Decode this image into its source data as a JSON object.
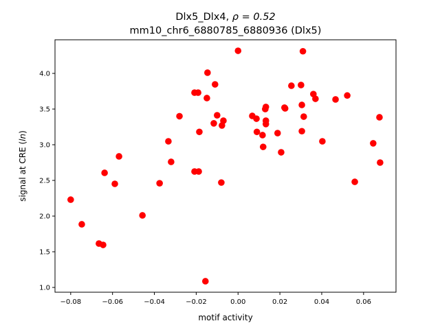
{
  "chart_data": {
    "type": "scatter",
    "title_line1_prefix": "Dlx5_Dlx4, ",
    "title_rho": "ρ = 0.52",
    "title_line2": "mm10_chr6_6880785_6880936 (Dlx5)",
    "xlabel": "motif activity",
    "ylabel_prefix": "signal at CRE (",
    "ylabel_italic": "ln",
    "ylabel_suffix": ")",
    "xlim": [
      -0.0875,
      0.0755
    ],
    "ylim": [
      0.933,
      4.471
    ],
    "xticks": [
      -0.08,
      -0.06,
      -0.04,
      -0.02,
      0.0,
      0.02,
      0.04,
      0.06
    ],
    "xtick_labels": [
      "−0.08",
      "−0.06",
      "−0.04",
      "−0.02",
      "0.00",
      "0.02",
      "0.04",
      "0.06"
    ],
    "yticks": [
      1.0,
      1.5,
      2.0,
      2.5,
      3.0,
      3.5,
      4.0
    ],
    "ytick_labels": [
      "1.0",
      "1.5",
      "2.0",
      "2.5",
      "3.0",
      "3.5",
      "4.0"
    ],
    "grid": false,
    "marker_color": "#ff0000",
    "points": [
      [
        -0.08,
        2.23
      ],
      [
        -0.0747,
        1.885
      ],
      [
        -0.0665,
        1.615
      ],
      [
        -0.0645,
        1.596
      ],
      [
        -0.0638,
        2.606
      ],
      [
        -0.0589,
        2.452
      ],
      [
        -0.0569,
        2.837
      ],
      [
        -0.0457,
        2.01
      ],
      [
        -0.0375,
        2.46
      ],
      [
        -0.0333,
        3.048
      ],
      [
        -0.032,
        2.76
      ],
      [
        -0.028,
        3.4
      ],
      [
        -0.0208,
        3.73
      ],
      [
        -0.0191,
        3.73
      ],
      [
        -0.0208,
        2.625
      ],
      [
        -0.0188,
        2.625
      ],
      [
        -0.0185,
        3.18
      ],
      [
        -0.0156,
        1.087
      ],
      [
        -0.0149,
        3.654
      ],
      [
        -0.0146,
        4.01
      ],
      [
        -0.0116,
        3.3
      ],
      [
        -0.011,
        3.846
      ],
      [
        -0.01,
        3.413
      ],
      [
        -0.008,
        2.47
      ],
      [
        -0.0077,
        3.27
      ],
      [
        -0.007,
        3.337
      ],
      [
        0.0,
        4.317
      ],
      [
        0.0068,
        3.404
      ],
      [
        0.0088,
        3.365
      ],
      [
        0.009,
        3.18
      ],
      [
        0.0117,
        3.135
      ],
      [
        0.012,
        2.97
      ],
      [
        0.013,
        3.5
      ],
      [
        0.0133,
        3.53
      ],
      [
        0.0133,
        3.337
      ],
      [
        0.0133,
        3.29
      ],
      [
        0.0189,
        3.163
      ],
      [
        0.0206,
        2.894
      ],
      [
        0.0222,
        3.52
      ],
      [
        0.0225,
        3.51
      ],
      [
        0.0255,
        3.827
      ],
      [
        0.0301,
        3.837
      ],
      [
        0.0305,
        3.558
      ],
      [
        0.0305,
        3.19
      ],
      [
        0.031,
        4.31
      ],
      [
        0.0314,
        3.394
      ],
      [
        0.036,
        3.71
      ],
      [
        0.037,
        3.644
      ],
      [
        0.0403,
        3.048
      ],
      [
        0.0466,
        3.635
      ],
      [
        0.0522,
        3.69
      ],
      [
        0.0558,
        2.48
      ],
      [
        0.0646,
        3.02
      ],
      [
        0.0676,
        3.385
      ],
      [
        0.0679,
        2.75
      ]
    ]
  }
}
